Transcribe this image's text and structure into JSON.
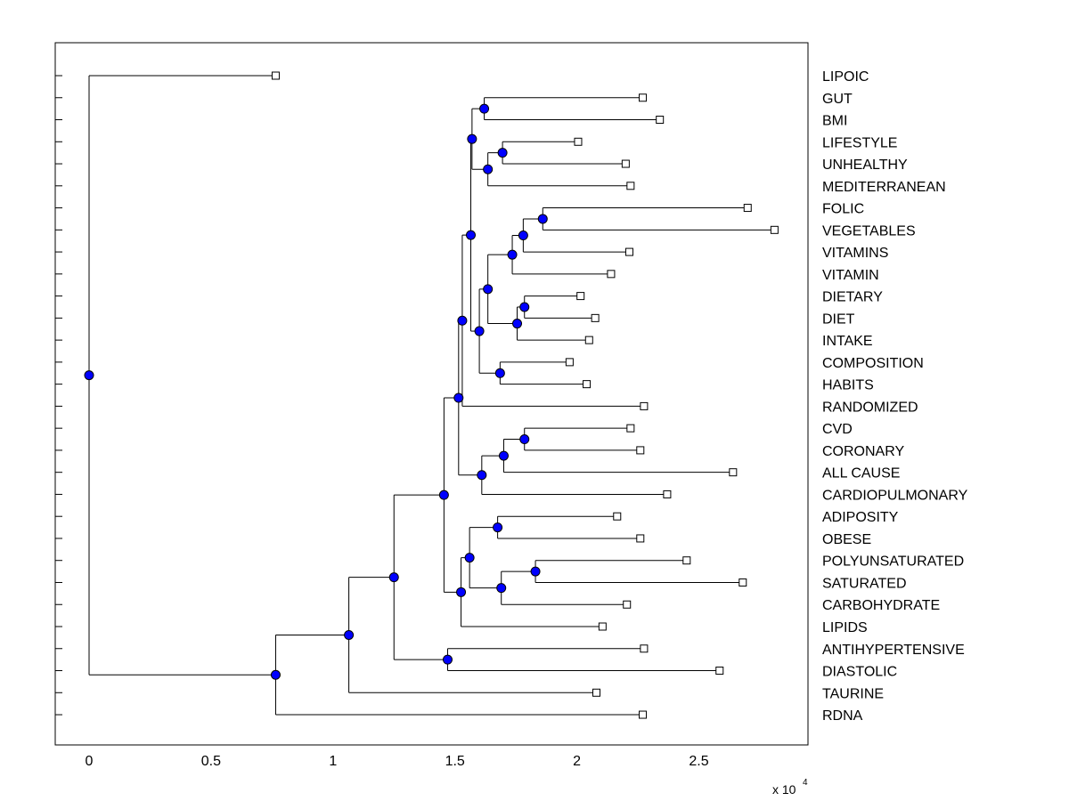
{
  "chart_data": {
    "type": "dendrogram",
    "orientation": "horizontal",
    "x_ticks": [
      0,
      0.5,
      1,
      1.5,
      2,
      2.5
    ],
    "x_tick_labels": [
      "0",
      "0.5",
      "1",
      "1.5",
      "2",
      "2.5"
    ],
    "xlim": [
      -0.14,
      2.94
    ],
    "x_multiplier_label": "x 10",
    "x_multiplier_exponent": "4",
    "leaf_marker_color": "#ffffff",
    "node_marker_color": "#0000ff",
    "leaves": [
      {
        "name": "LIPOIC",
        "x": 0.765
      },
      {
        "name": "GUT",
        "x": 2.27
      },
      {
        "name": "BMI",
        "x": 2.34
      },
      {
        "name": "LIFESTYLE",
        "x": 2.005
      },
      {
        "name": "UNHEALTHY",
        "x": 2.2
      },
      {
        "name": "MEDITERRANEAN",
        "x": 2.22
      },
      {
        "name": "FOLIC",
        "x": 2.7
      },
      {
        "name": "VEGETABLES",
        "x": 2.81
      },
      {
        "name": "VITAMINS",
        "x": 2.215
      },
      {
        "name": "VITAMIN",
        "x": 2.14
      },
      {
        "name": "DIETARY",
        "x": 2.015
      },
      {
        "name": "DIET",
        "x": 2.075
      },
      {
        "name": "INTAKE",
        "x": 2.05
      },
      {
        "name": "COMPOSITION",
        "x": 1.97
      },
      {
        "name": "HABITS",
        "x": 2.04
      },
      {
        "name": "RANDOMIZED",
        "x": 2.275
      },
      {
        "name": "CVD",
        "x": 2.22
      },
      {
        "name": "CORONARY",
        "x": 2.26
      },
      {
        "name": "ALL CAUSE",
        "x": 2.64
      },
      {
        "name": "CARDIOPULMONARY",
        "x": 2.37
      },
      {
        "name": "ADIPOSITY",
        "x": 2.165
      },
      {
        "name": "OBESE",
        "x": 2.26
      },
      {
        "name": "POLYUNSATURATED",
        "x": 2.45
      },
      {
        "name": "SATURATED",
        "x": 2.68
      },
      {
        "name": "CARBOHYDRATE",
        "x": 2.205
      },
      {
        "name": "LIPIDS",
        "x": 2.105
      },
      {
        "name": "ANTIHYPERTENSIVE",
        "x": 2.275
      },
      {
        "name": "DIASTOLIC",
        "x": 2.585
      },
      {
        "name": "TAURINE",
        "x": 2.08
      },
      {
        "name": "RDNA",
        "x": 2.27
      }
    ],
    "merges": [
      {
        "id": "m1",
        "x": 1.62,
        "children": [
          1,
          2
        ]
      },
      {
        "id": "m2",
        "x": 1.695,
        "children": [
          3,
          4
        ]
      },
      {
        "id": "m3",
        "x": 1.635,
        "children": [
          "m2",
          5
        ]
      },
      {
        "id": "m4",
        "x": 1.57,
        "children": [
          "m1",
          "m3"
        ]
      },
      {
        "id": "m5",
        "x": 1.86,
        "children": [
          6,
          7
        ]
      },
      {
        "id": "m6",
        "x": 1.78,
        "children": [
          "m5",
          8
        ]
      },
      {
        "id": "m7",
        "x": 1.735,
        "children": [
          "m6",
          9
        ]
      },
      {
        "id": "m8",
        "x": 1.785,
        "children": [
          10,
          11
        ]
      },
      {
        "id": "m9",
        "x": 1.755,
        "children": [
          "m8",
          12
        ]
      },
      {
        "id": "m10",
        "x": 1.635,
        "children": [
          "m7",
          "m9"
        ]
      },
      {
        "id": "m11",
        "x": 1.685,
        "children": [
          13,
          14
        ]
      },
      {
        "id": "m12",
        "x": 1.6,
        "children": [
          "m10",
          "m11"
        ]
      },
      {
        "id": "m13",
        "x": 1.565,
        "children": [
          "m4",
          "m12"
        ]
      },
      {
        "id": "m14",
        "x": 1.53,
        "children": [
          "m13",
          15
        ]
      },
      {
        "id": "m15",
        "x": 1.785,
        "children": [
          16,
          17
        ]
      },
      {
        "id": "m16",
        "x": 1.7,
        "children": [
          "m15",
          18
        ]
      },
      {
        "id": "m17",
        "x": 1.61,
        "children": [
          "m16",
          19
        ]
      },
      {
        "id": "m18",
        "x": 1.515,
        "children": [
          "m14",
          "m17"
        ]
      },
      {
        "id": "m19",
        "x": 1.675,
        "children": [
          20,
          21
        ]
      },
      {
        "id": "m20",
        "x": 1.83,
        "children": [
          22,
          23
        ]
      },
      {
        "id": "m21",
        "x": 1.69,
        "children": [
          "m20",
          24
        ]
      },
      {
        "id": "m22",
        "x": 1.56,
        "children": [
          "m19",
          "m21"
        ]
      },
      {
        "id": "m23",
        "x": 1.525,
        "children": [
          "m22",
          25
        ]
      },
      {
        "id": "m24",
        "x": 1.455,
        "children": [
          "m18",
          "m23"
        ]
      },
      {
        "id": "m25",
        "x": 1.47,
        "children": [
          26,
          27
        ]
      },
      {
        "id": "m26",
        "x": 1.25,
        "children": [
          "m24",
          "m25"
        ]
      },
      {
        "id": "m27",
        "x": 1.065,
        "children": [
          "m26",
          28
        ]
      },
      {
        "id": "m28",
        "x": 0.765,
        "children": [
          "m27",
          29
        ]
      },
      {
        "id": "m29",
        "x": 0.0,
        "children": [
          0,
          "m28"
        ]
      }
    ]
  }
}
